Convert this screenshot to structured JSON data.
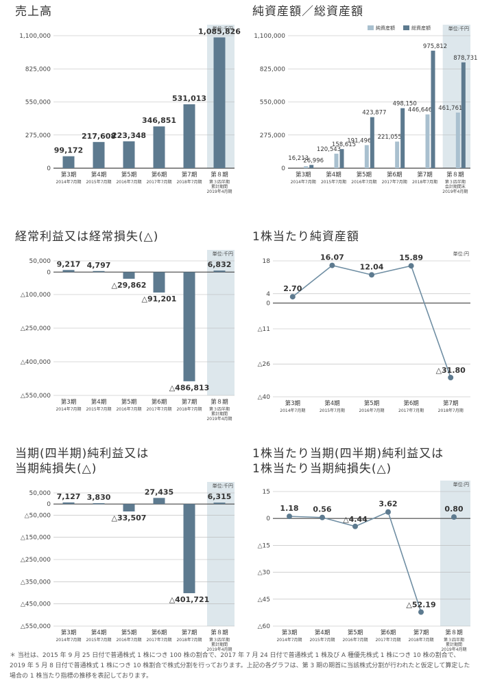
{
  "chart_data": [
    {
      "type": "bar",
      "title": "売上高",
      "unit": "単位:千円",
      "categories": [
        "第3期",
        "第4期",
        "第5期",
        "第6期",
        "第7期",
        "第８期"
      ],
      "sublabels": [
        "2014年7月期",
        "2015年7月期",
        "2016年7月期",
        "2017年7月期",
        "2018年7月期",
        "第３四半期\n累計期間\n2019年4月期"
      ],
      "ylim": [
        0,
        1100000
      ],
      "yticks": [
        0,
        275000,
        550000,
        825000,
        1100000
      ],
      "ytick_labels": [
        "0",
        "275,000",
        "550,000",
        "825,000",
        "1,100,000"
      ],
      "values": [
        99172,
        217608,
        223348,
        346851,
        531013,
        1085826
      ],
      "value_labels": [
        "99,172",
        "217,608",
        "223,348",
        "346,851",
        "531,013",
        "1,085,826"
      ],
      "highlight_last": true
    },
    {
      "type": "bar",
      "title": "純資産額／総資産額",
      "unit": "単位:千円",
      "categories": [
        "第3期",
        "第4期",
        "第5期",
        "第6期",
        "第7期",
        "第８期"
      ],
      "sublabels": [
        "2014年7月期",
        "2015年7月期",
        "2016年7月期",
        "2017年7月期",
        "2018年7月期",
        "第３四半期\n会計期間末\n2019年4月期"
      ],
      "ylim": [
        0,
        1100000
      ],
      "yticks": [
        0,
        275000,
        550000,
        825000,
        1100000
      ],
      "ytick_labels": [
        "0",
        "275,000",
        "550,000",
        "825,000",
        "1,100,000"
      ],
      "series": [
        {
          "name": "純資産額",
          "color": "#a9c0cf",
          "values": [
            16213,
            120543,
            191496,
            221055,
            446646,
            461761
          ],
          "value_labels": [
            "16,213",
            "120,543",
            "191,496",
            "221,055",
            "446,646",
            "461,761"
          ]
        },
        {
          "name": "総資産額",
          "color": "#5d7a8f",
          "values": [
            26996,
            158615,
            423877,
            498150,
            975812,
            878731
          ],
          "value_labels": [
            "26,996",
            "158,615",
            "423,877",
            "498,150",
            "975,812",
            "878,731"
          ]
        }
      ],
      "highlight_last": true
    },
    {
      "type": "bar",
      "title": "経常利益又は経常損失(△)",
      "unit": "単位:千円",
      "categories": [
        "第3期",
        "第4期",
        "第5期",
        "第6期",
        "第7期",
        "第８期"
      ],
      "sublabels": [
        "2014年7月期",
        "2015年7月期",
        "2016年7月期",
        "2017年7月期",
        "2018年7月期",
        "第３四半期\n累計期間\n2019年4月期"
      ],
      "ylim": [
        -550000,
        50000
      ],
      "yticks": [
        50000,
        0,
        -100000,
        -250000,
        -400000,
        -550000
      ],
      "ytick_labels": [
        "50,000",
        "0",
        "△100,000",
        "△250,000",
        "△400,000",
        "△550,000"
      ],
      "values": [
        9217,
        4797,
        -29862,
        -91201,
        -486813,
        6832
      ],
      "value_labels": [
        "9,217",
        "4,797",
        "△29,862",
        "△91,201",
        "△486,813",
        "6,832"
      ],
      "highlight_last": true
    },
    {
      "type": "line",
      "title": "1株当たり純資産額",
      "unit": "単位:円",
      "categories": [
        "第3期",
        "第4期",
        "第5期",
        "第6期",
        "第7期"
      ],
      "sublabels": [
        "2014年7月期",
        "2015年7月期",
        "2016年7月期",
        "2017年7月期",
        "2018年7月期"
      ],
      "ylim": [
        -40,
        18
      ],
      "yticks": [
        18,
        4,
        0,
        -11,
        -26,
        -40
      ],
      "ytick_labels": [
        "18",
        "4",
        "0",
        "△11",
        "△26",
        "△40"
      ],
      "values": [
        2.7,
        16.07,
        12.04,
        15.89,
        -31.8
      ],
      "value_labels": [
        "2.70",
        "16.07",
        "12.04",
        "15.89",
        "△31.80"
      ],
      "highlight_last": false
    },
    {
      "type": "bar",
      "title": "当期(四半期)純利益又は\n当期純損失(△)",
      "unit": "単位:千円",
      "categories": [
        "第3期",
        "第4期",
        "第5期",
        "第6期",
        "第7期",
        "第８期"
      ],
      "sublabels": [
        "2014年7月期",
        "2015年7月期",
        "2016年7月期",
        "2017年7月期",
        "2018年7月期",
        "第３四半期\n累計期間\n2019年4月期"
      ],
      "ylim": [
        -550000,
        50000
      ],
      "yticks": [
        50000,
        0,
        -50000,
        -150000,
        -250000,
        -350000,
        -450000,
        -550000
      ],
      "ytick_labels": [
        "50,000",
        "0",
        "△50,000",
        "△150,000",
        "△250,000",
        "△350,000",
        "△450,000",
        "△550,000"
      ],
      "values": [
        7127,
        3830,
        -33507,
        27435,
        -401721,
        6315
      ],
      "value_labels": [
        "7,127",
        "3,830",
        "△33,507",
        "27,435",
        "△401,721",
        "6,315"
      ],
      "highlight_last": true
    },
    {
      "type": "line",
      "title": "1株当たり当期(四半期)純利益又は\n1株当たり当期純損失(△)",
      "unit": "単位:円",
      "categories": [
        "第3期",
        "第4期",
        "第5期",
        "第6期",
        "第7期",
        "第８期"
      ],
      "sublabels": [
        "2014年7月期",
        "2015年7月期",
        "2016年7月期",
        "2017年7月期",
        "2018年7月期",
        "第３四半期\n累計期間\n2019年4月期"
      ],
      "ylim": [
        -60,
        15
      ],
      "yticks": [
        15,
        0,
        -15,
        -30,
        -45,
        -60
      ],
      "ytick_labels": [
        "15",
        "0",
        "△15",
        "△30",
        "△45",
        "△60"
      ],
      "values": [
        1.18,
        0.56,
        -4.44,
        3.62,
        -52.19,
        0.8
      ],
      "value_labels": [
        "1.18",
        "0.56",
        "△4.44",
        "3.62",
        "△52.19",
        "0.80"
      ],
      "connect_last": false,
      "highlight_last": true
    }
  ],
  "footnote": "＊ 当社は、2015 年 9 月 25 日付で普通株式 1 株につき 100 株の割合で、2017 年 7 月 24 日付で普通株式 1 株及び A 種優先株式 1 株につき 10 株の割合で、2019 年 5 月 8 日付で普通株式 1 株につき 10 株割合で株式分割を行っております。上記の各グラフは、第 3 期の期首に当該株式分割が行われたと仮定して算定した場合の 1 株当たり指標の推移を表記しております。",
  "colors": {
    "bar": "#5d7a8f",
    "highlight_bg": "#dde7ec",
    "grid": "#b5b5b5",
    "axis": "#444444",
    "line": "#6f8ea3",
    "point": "#5d7a8f"
  }
}
